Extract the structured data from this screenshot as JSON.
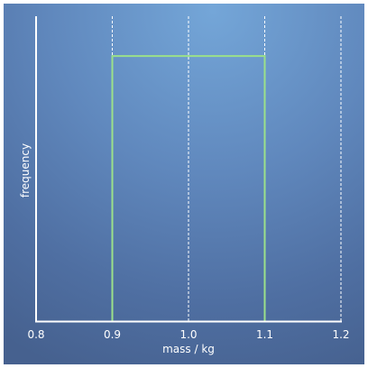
{
  "colors": {
    "background_top": "#74a6d8",
    "background_bottom": "#46618f",
    "axis": "#ffffff",
    "grid": "#ffffff",
    "histogram": "#9be08a"
  },
  "chart_data": {
    "type": "histogram",
    "xlabel": "mass / kg",
    "ylabel": "frequency",
    "xlim": [
      0.8,
      1.2
    ],
    "ylim": [
      0,
      1.15
    ],
    "x_ticks": [
      "0.8",
      "0.9",
      "1.0",
      "1.1",
      "1.2"
    ],
    "x_tick_values": [
      0.8,
      0.9,
      1.0,
      1.1,
      1.2
    ],
    "grid": "vertical dashed",
    "y_ticks": "hidden",
    "bins": [
      {
        "x0": 0.9,
        "x1": 1.1,
        "height": 1
      }
    ]
  }
}
